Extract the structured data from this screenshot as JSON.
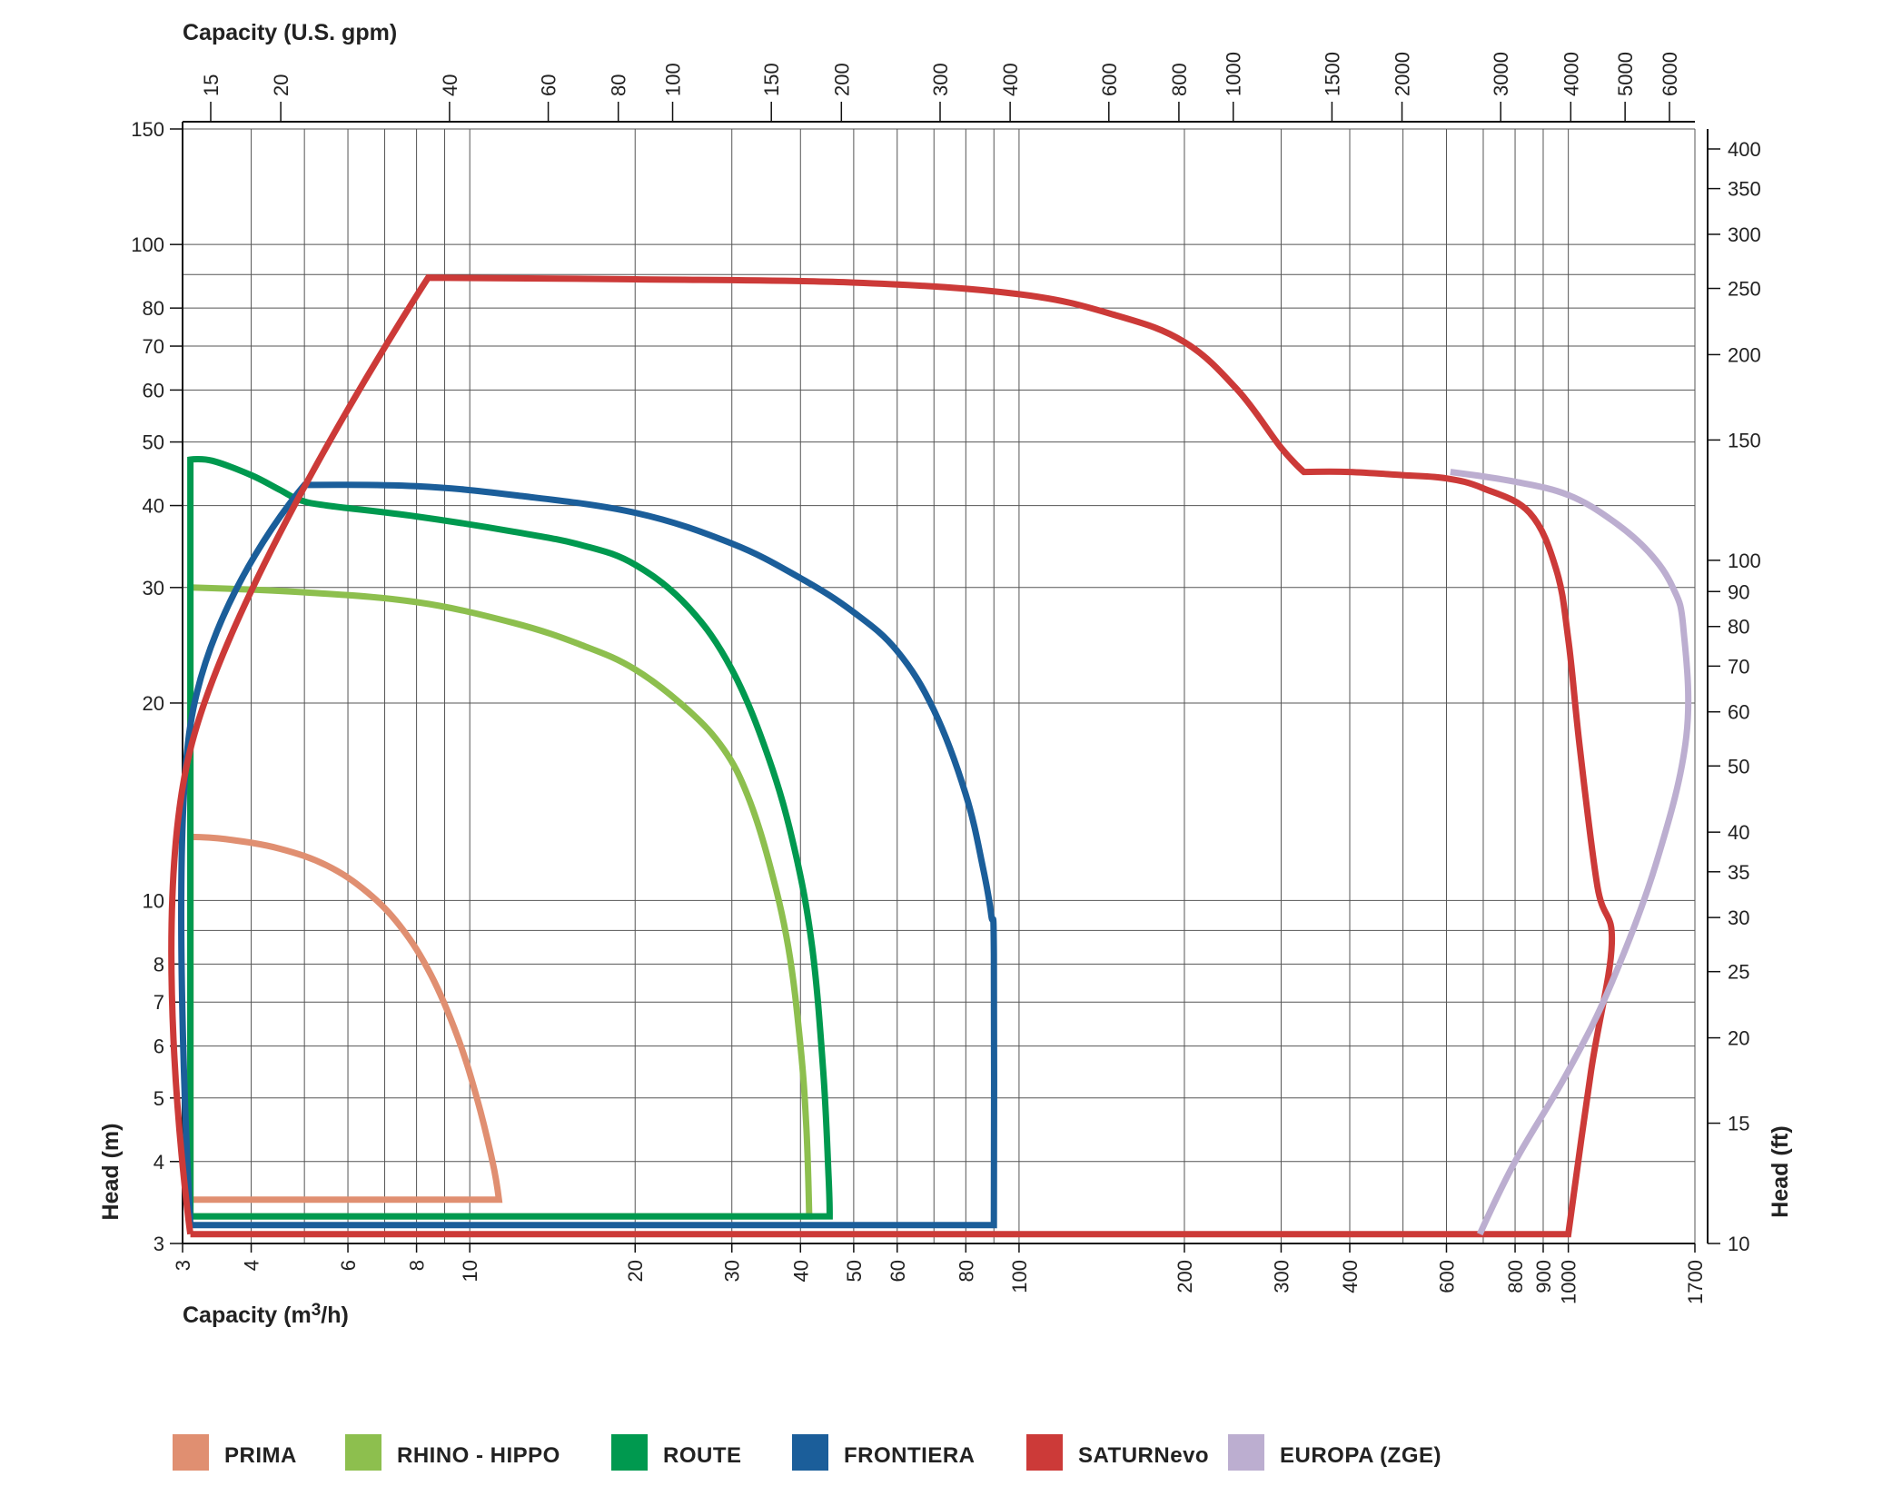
{
  "chart_data": {
    "type": "line",
    "top_axis": {
      "label": "Capacity (U.S. gpm)",
      "ticks": [
        "15",
        "20",
        "40",
        "60",
        "80",
        "100",
        "150",
        "200",
        "300",
        "400",
        "600",
        "800",
        "1000",
        "1500",
        "2000",
        "3000",
        "4000",
        "5000",
        "6000"
      ],
      "tick_values": [
        15,
        20,
        40,
        60,
        80,
        100,
        150,
        200,
        300,
        400,
        600,
        800,
        1000,
        1500,
        2000,
        3000,
        4000,
        5000,
        6000
      ]
    },
    "x_axis": {
      "label_prefix": "Capacity (m",
      "label_sup": "3",
      "label_suffix": "/h)",
      "scale": "log",
      "range": [
        3,
        1700
      ],
      "ticks": [
        "3",
        "4",
        "6",
        "8",
        "10",
        "20",
        "30",
        "40",
        "50",
        "60",
        "80",
        "100",
        "200",
        "300",
        "400",
        "600",
        "800",
        "900",
        "1000",
        "1700"
      ],
      "tick_values": [
        3,
        4,
        6,
        8,
        10,
        20,
        30,
        40,
        50,
        60,
        80,
        100,
        200,
        300,
        400,
        600,
        800,
        900,
        1000,
        1700
      ],
      "grid": [
        3,
        4,
        5,
        6,
        7,
        8,
        9,
        10,
        20,
        30,
        40,
        50,
        60,
        70,
        80,
        90,
        100,
        200,
        300,
        400,
        500,
        600,
        700,
        800,
        900,
        1000,
        1700
      ]
    },
    "y_axis_left": {
      "label": "Head (m)",
      "scale": "log",
      "range": [
        3,
        150
      ],
      "ticks": [
        "3",
        "4",
        "5",
        "6",
        "7",
        "8",
        "10",
        "20",
        "30",
        "40",
        "50",
        "60",
        "70",
        "80",
        "100",
        "150"
      ],
      "tick_values": [
        3,
        4,
        5,
        6,
        7,
        8,
        10,
        20,
        30,
        40,
        50,
        60,
        70,
        80,
        100,
        150
      ],
      "grid": [
        3,
        4,
        5,
        6,
        7,
        8,
        9,
        10,
        20,
        30,
        40,
        50,
        60,
        70,
        80,
        90,
        100,
        150
      ]
    },
    "y_axis_right": {
      "label": "Head (ft)",
      "ticks": [
        "10",
        "15",
        "20",
        "25",
        "30",
        "35",
        "40",
        "50",
        "60",
        "70",
        "80",
        "90",
        "100",
        "150",
        "200",
        "250",
        "300",
        "350",
        "400"
      ],
      "tick_values": [
        10,
        15,
        20,
        25,
        30,
        35,
        40,
        50,
        60,
        70,
        80,
        90,
        100,
        150,
        200,
        250,
        300,
        350,
        400
      ]
    },
    "grid": true,
    "legend_position": "bottom",
    "series": [
      {
        "name": "PRIMA",
        "color": "#e08f71",
        "points": [
          [
            3.1,
            3.5
          ],
          [
            3.1,
            12.5
          ],
          [
            3.6,
            12.4
          ],
          [
            4.5,
            12
          ],
          [
            5.5,
            11.3
          ],
          [
            6.5,
            10.3
          ],
          [
            7.5,
            9.1
          ],
          [
            8.5,
            7.7
          ],
          [
            9.5,
            6.2
          ],
          [
            10.3,
            5
          ],
          [
            11,
            4
          ],
          [
            11.3,
            3.5
          ],
          [
            3.1,
            3.5
          ]
        ]
      },
      {
        "name": "RHINO - HIPPO",
        "color": "#8dbf4e",
        "points": [
          [
            3.1,
            3.3
          ],
          [
            3.1,
            30
          ],
          [
            5,
            29.5
          ],
          [
            8,
            28.5
          ],
          [
            12,
            26.5
          ],
          [
            16,
            24.5
          ],
          [
            20,
            22.5
          ],
          [
            25,
            19.5
          ],
          [
            29,
            17
          ],
          [
            32,
            14.5
          ],
          [
            35,
            11.5
          ],
          [
            38,
            8.5
          ],
          [
            40,
            6
          ],
          [
            41,
            4.5
          ],
          [
            41.5,
            3.3
          ],
          [
            3.1,
            3.3
          ]
        ]
      },
      {
        "name": "ROUTE",
        "color": "#00994f",
        "points": [
          [
            3.1,
            3.3
          ],
          [
            3.1,
            47
          ],
          [
            3.4,
            46.8
          ],
          [
            4,
            44.5
          ],
          [
            4.5,
            42.3
          ],
          [
            4.9,
            40.8
          ],
          [
            5.5,
            40
          ],
          [
            8,
            38.5
          ],
          [
            12,
            36.5
          ],
          [
            16,
            34.8
          ],
          [
            20,
            32.5
          ],
          [
            25,
            28
          ],
          [
            30,
            22.5
          ],
          [
            35,
            16.5
          ],
          [
            39,
            12
          ],
          [
            42,
            8.5
          ],
          [
            44,
            5.5
          ],
          [
            45,
            3.8
          ],
          [
            45.2,
            3.3
          ],
          [
            3.1,
            3.3
          ]
        ]
      },
      {
        "name": "FRONTIERA",
        "color": "#1b5e9a",
        "points": [
          [
            3.1,
            3.2
          ],
          [
            3.1,
            18.5
          ],
          [
            5,
            43
          ],
          [
            8,
            42.8
          ],
          [
            12,
            41.5
          ],
          [
            20,
            39
          ],
          [
            30,
            35
          ],
          [
            40,
            31
          ],
          [
            50,
            27.5
          ],
          [
            60,
            24
          ],
          [
            70,
            19.5
          ],
          [
            80,
            14.5
          ],
          [
            86,
            11.2
          ],
          [
            89,
            9.5
          ],
          [
            90,
            8.3
          ],
          [
            90,
            3.2
          ],
          [
            3.1,
            3.2
          ]
        ]
      },
      {
        "name": "SATURNevo",
        "color": "#cc3a38",
        "points": [
          [
            3.1,
            3.1
          ],
          [
            3.1,
            17
          ],
          [
            8.4,
            89
          ],
          [
            20,
            88.5
          ],
          [
            50,
            87.5
          ],
          [
            100,
            84
          ],
          [
            150,
            78
          ],
          [
            200,
            71
          ],
          [
            250,
            60
          ],
          [
            300,
            49
          ],
          [
            330,
            45
          ],
          [
            400,
            45
          ],
          [
            500,
            44.5
          ],
          [
            600,
            44
          ],
          [
            700,
            42.5
          ],
          [
            850,
            39
          ],
          [
            950,
            32
          ],
          [
            1000,
            25
          ],
          [
            1050,
            17
          ],
          [
            1130,
            10.5
          ],
          [
            1200,
            8.6
          ],
          [
            1100,
            5.5
          ],
          [
            1000,
            3.1
          ],
          [
            3.1,
            3.1
          ]
        ]
      },
      {
        "name": "EUROPA (ZGE)",
        "color": "#bcaed0",
        "points": [
          [
            610,
            45
          ],
          [
            800,
            43.5
          ],
          [
            1000,
            41.5
          ],
          [
            1200,
            38
          ],
          [
            1400,
            34
          ],
          [
            1550,
            30
          ],
          [
            1620,
            26
          ],
          [
            1640,
            17.8
          ],
          [
            1450,
            11.5
          ],
          [
            1200,
            7.5
          ],
          [
            1000,
            5.5
          ],
          [
            800,
            4
          ],
          [
            690,
            3.1
          ]
        ]
      }
    ]
  }
}
